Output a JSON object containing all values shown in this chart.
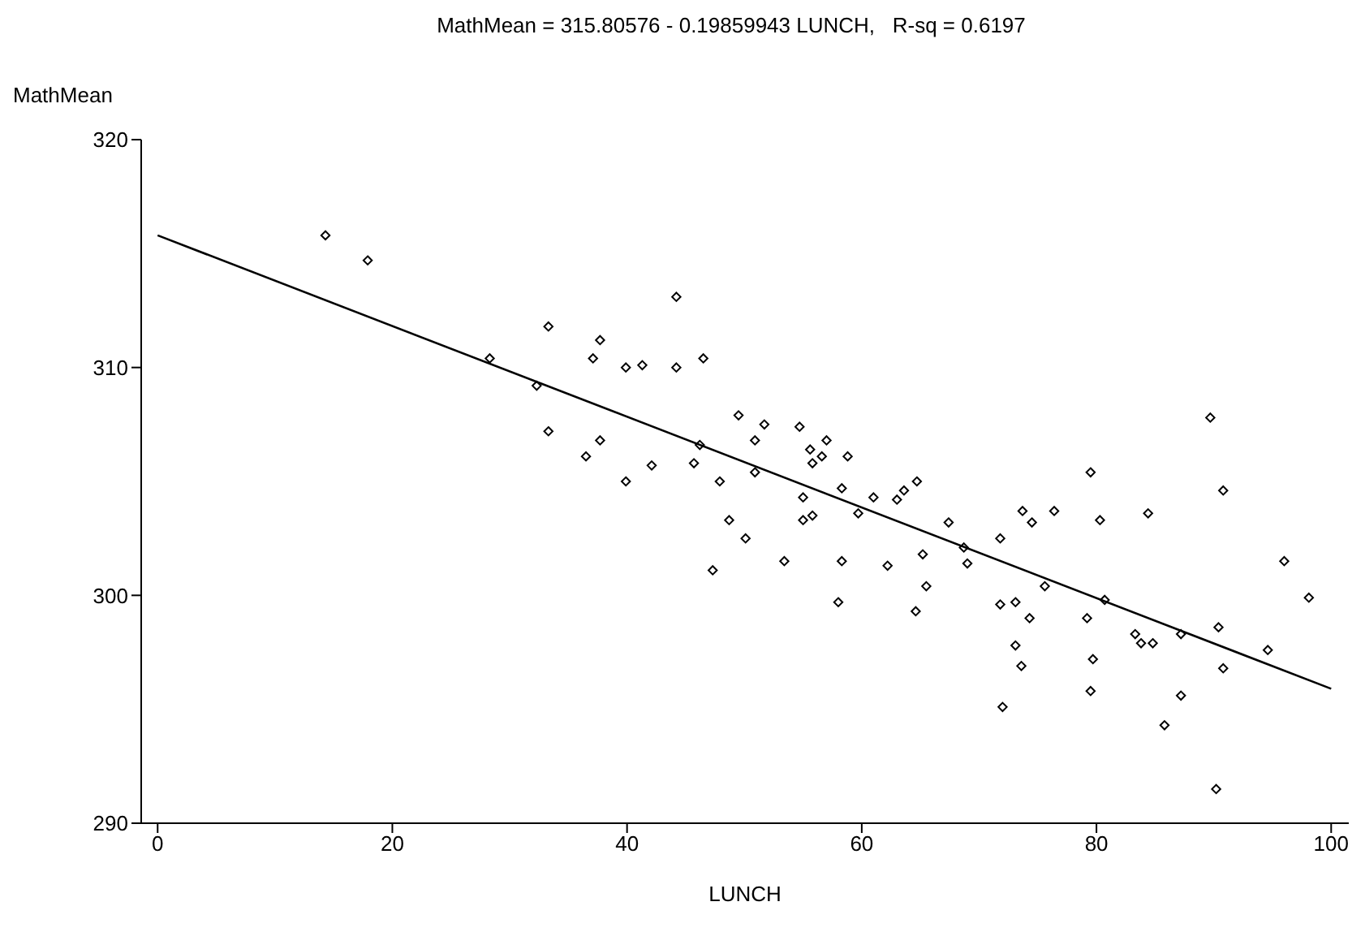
{
  "chart_data": {
    "type": "scatter",
    "title": "MathMean = 315.80576 - 0.19859943 LUNCH,   R-sq = 0.6197",
    "xlabel": "LUNCH",
    "ylabel": "MathMean",
    "xlim": [
      -1.4,
      101.5
    ],
    "ylim": [
      290,
      320
    ],
    "xticks": [
      0,
      20,
      40,
      60,
      80,
      100
    ],
    "yticks": [
      290,
      300,
      310,
      320
    ],
    "legend": false,
    "series": [
      {
        "color": "#000000",
        "marker": "diamond",
        "x": [
          14.3,
          17.9,
          28.3,
          32.3,
          33.3,
          33.3,
          37.7,
          37.1,
          37.7,
          36.5,
          44.2,
          39.9,
          41.3,
          44.2,
          46.5,
          39.9,
          42.1,
          45.7,
          46.2,
          47.9,
          49.5,
          50.9,
          50.9,
          51.7,
          48.7,
          50.1,
          47.3,
          53.4,
          54.7,
          55.6,
          57.0,
          56.6,
          55.8,
          58.8,
          55.0,
          58.3,
          55.0,
          55.8,
          58.3,
          58.0,
          61.0,
          59.7,
          62.2,
          63.0,
          63.6,
          64.7,
          67.4,
          65.2,
          65.5,
          64.6,
          68.7,
          69.0,
          71.8,
          71.8,
          73.7,
          74.5,
          76.4,
          79.5,
          80.3,
          84.4,
          89.7,
          90.8,
          96.0,
          98.1,
          73.1,
          75.6,
          74.3,
          79.2,
          73.1,
          73.6,
          79.7,
          79.5,
          72.0,
          83.3,
          83.8,
          84.8,
          87.2,
          90.4,
          94.6,
          90.8,
          87.2,
          85.8,
          90.2,
          80.7
        ],
        "values": [
          315.8,
          314.7,
          310.4,
          309.2,
          311.8,
          307.2,
          311.2,
          310.4,
          306.8,
          306.1,
          313.1,
          310.0,
          310.1,
          310.0,
          310.4,
          305.0,
          305.7,
          305.8,
          306.6,
          305.0,
          307.9,
          306.8,
          305.4,
          307.5,
          303.3,
          302.5,
          301.1,
          301.5,
          307.4,
          306.4,
          306.8,
          306.1,
          305.8,
          306.1,
          304.3,
          304.7,
          303.3,
          303.5,
          301.5,
          299.7,
          304.3,
          303.6,
          301.3,
          304.2,
          304.6,
          305.0,
          303.2,
          301.8,
          300.4,
          299.3,
          302.1,
          301.4,
          302.5,
          299.6,
          303.7,
          303.2,
          303.7,
          305.4,
          303.3,
          303.6,
          307.8,
          304.6,
          301.5,
          299.9,
          299.7,
          300.4,
          299.0,
          299.0,
          297.8,
          296.9,
          297.2,
          295.8,
          295.1,
          298.3,
          297.9,
          297.9,
          298.3,
          298.6,
          297.6,
          296.8,
          295.6,
          294.3,
          291.5,
          299.8
        ]
      },
      {
        "type": "line",
        "color": "#000000",
        "marker": "none",
        "line_style": "solid",
        "x": [
          0,
          100
        ],
        "values": [
          315.8,
          295.9
        ]
      }
    ]
  }
}
